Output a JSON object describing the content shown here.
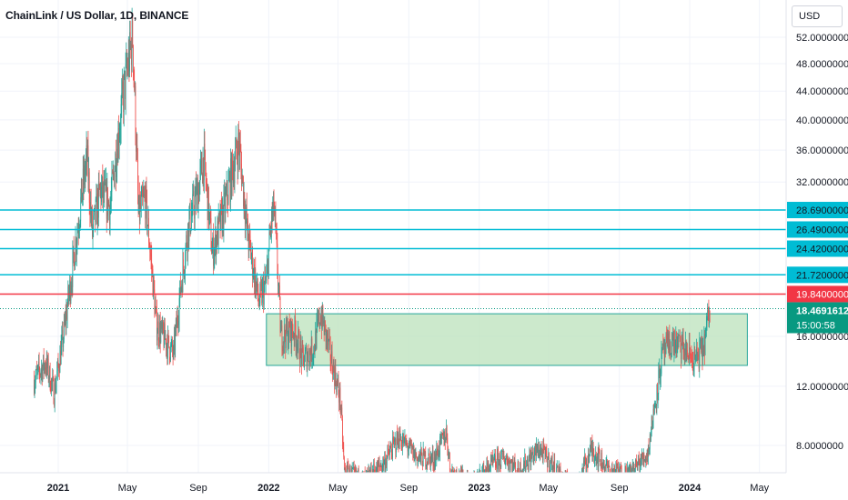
{
  "header": {
    "title": "ChainLink / US Dollar, 1D, BINANCE",
    "currency": "USD"
  },
  "colors": {
    "up": "#26a69a",
    "down": "#ef5350",
    "resistance": "#00bcd4",
    "support_line": "#f23645",
    "zone_fill": "#bfe3bf",
    "zone_border": "#26a69a",
    "current_price_bg": "#089981"
  },
  "chart_data": {
    "type": "candlestick",
    "title": "ChainLink / US Dollar, 1D, BINANCE",
    "y_axis": {
      "ticks": [
        {
          "value": 52,
          "label": "52.0000000"
        },
        {
          "value": 48,
          "label": "48.0000000"
        },
        {
          "value": 44,
          "label": "44.0000000"
        },
        {
          "value": 40,
          "label": "40.0000000"
        },
        {
          "value": 36,
          "label": "36.0000000"
        },
        {
          "value": 32,
          "label": "32.0000000"
        },
        {
          "value": 16,
          "label": "16.0000000"
        },
        {
          "value": 12,
          "label": "12.0000000"
        },
        {
          "value": 8,
          "label": "8.0000000"
        }
      ]
    },
    "x_axis": {
      "ticks": [
        {
          "date": "2021-01-01",
          "label": "2021",
          "bold": true
        },
        {
          "date": "2021-05-01",
          "label": "May",
          "bold": false
        },
        {
          "date": "2021-09-01",
          "label": "Sep",
          "bold": false
        },
        {
          "date": "2022-01-01",
          "label": "2022",
          "bold": true
        },
        {
          "date": "2022-05-01",
          "label": "May",
          "bold": false
        },
        {
          "date": "2022-09-01",
          "label": "Sep",
          "bold": false
        },
        {
          "date": "2023-01-01",
          "label": "2023",
          "bold": true
        },
        {
          "date": "2023-05-01",
          "label": "May",
          "bold": false
        },
        {
          "date": "2023-09-01",
          "label": "Sep",
          "bold": false
        },
        {
          "date": "2024-01-01",
          "label": "2024",
          "bold": true
        },
        {
          "date": "2024-05-01",
          "label": "May",
          "bold": false
        }
      ]
    },
    "price_path": [
      [
        "2020-11-20",
        12.5
      ],
      [
        "2020-12-10",
        13.8
      ],
      [
        "2020-12-25",
        11.5
      ],
      [
        "2021-01-10",
        16.0
      ],
      [
        "2021-01-25",
        22.0
      ],
      [
        "2021-02-10",
        30.0
      ],
      [
        "2021-02-20",
        35.0
      ],
      [
        "2021-03-01",
        26.0
      ],
      [
        "2021-03-15",
        31.0
      ],
      [
        "2021-04-01",
        29.0
      ],
      [
        "2021-04-15",
        38.0
      ],
      [
        "2021-04-25",
        44.0
      ],
      [
        "2021-05-10",
        52.0
      ],
      [
        "2021-05-20",
        28.0
      ],
      [
        "2021-06-01",
        30.0
      ],
      [
        "2021-06-20",
        17.0
      ],
      [
        "2021-07-20",
        14.5
      ],
      [
        "2021-08-15",
        27.0
      ],
      [
        "2021-09-01",
        31.0
      ],
      [
        "2021-09-10",
        35.0
      ],
      [
        "2021-09-25",
        24.0
      ],
      [
        "2021-10-15",
        28.5
      ],
      [
        "2021-11-10",
        37.0
      ],
      [
        "2021-11-25",
        26.0
      ],
      [
        "2021-12-15",
        19.0
      ],
      [
        "2021-12-28",
        21.0
      ],
      [
        "2022-01-05",
        27.0
      ],
      [
        "2022-01-10",
        29.0
      ],
      [
        "2022-01-22",
        16.0
      ],
      [
        "2022-02-15",
        16.5
      ],
      [
        "2022-03-01",
        14.0
      ],
      [
        "2022-03-20",
        15.0
      ],
      [
        "2022-04-01",
        18.0
      ],
      [
        "2022-04-20",
        14.0
      ],
      [
        "2022-05-05",
        11.0
      ],
      [
        "2022-05-12",
        6.5
      ],
      [
        "2022-06-15",
        6.0
      ],
      [
        "2022-07-20",
        7.0
      ],
      [
        "2022-08-15",
        8.5
      ],
      [
        "2022-09-15",
        7.3
      ],
      [
        "2022-10-15",
        7.2
      ],
      [
        "2022-11-05",
        8.8
      ],
      [
        "2022-11-12",
        6.5
      ],
      [
        "2022-12-20",
        5.8
      ],
      [
        "2023-01-20",
        6.8
      ],
      [
        "2023-02-15",
        7.3
      ],
      [
        "2023-03-10",
        6.5
      ],
      [
        "2023-04-15",
        7.8
      ],
      [
        "2023-05-15",
        6.5
      ],
      [
        "2023-06-15",
        5.5
      ],
      [
        "2023-07-15",
        7.8
      ],
      [
        "2023-08-15",
        6.5
      ],
      [
        "2023-09-20",
        6.4
      ],
      [
        "2023-10-20",
        7.5
      ],
      [
        "2023-11-01",
        10.5
      ],
      [
        "2023-11-15",
        14.5
      ],
      [
        "2023-12-01",
        15.5
      ],
      [
        "2023-12-15",
        15.2
      ],
      [
        "2024-01-10",
        14.0
      ],
      [
        "2024-01-25",
        15.0
      ],
      [
        "2024-02-05",
        18.5
      ]
    ],
    "levels": [
      {
        "name": "28.6900000",
        "value": 28.69,
        "kind": "resistance"
      },
      {
        "name": "26.4900000",
        "value": 26.49,
        "kind": "resistance"
      },
      {
        "name": "24.4200000",
        "value": 24.42,
        "kind": "resistance"
      },
      {
        "name": "21.7200000",
        "value": 21.72,
        "kind": "resistance"
      },
      {
        "name": "19.8400000",
        "value": 19.84,
        "kind": "support"
      }
    ],
    "zone": {
      "from": "2021-12-28",
      "to": "2024-04-10",
      "low": 13.6,
      "high": 18.0
    },
    "current_price": {
      "value": 18.4691612,
      "label": "18.4691612",
      "countdown": "15:00:58"
    }
  }
}
